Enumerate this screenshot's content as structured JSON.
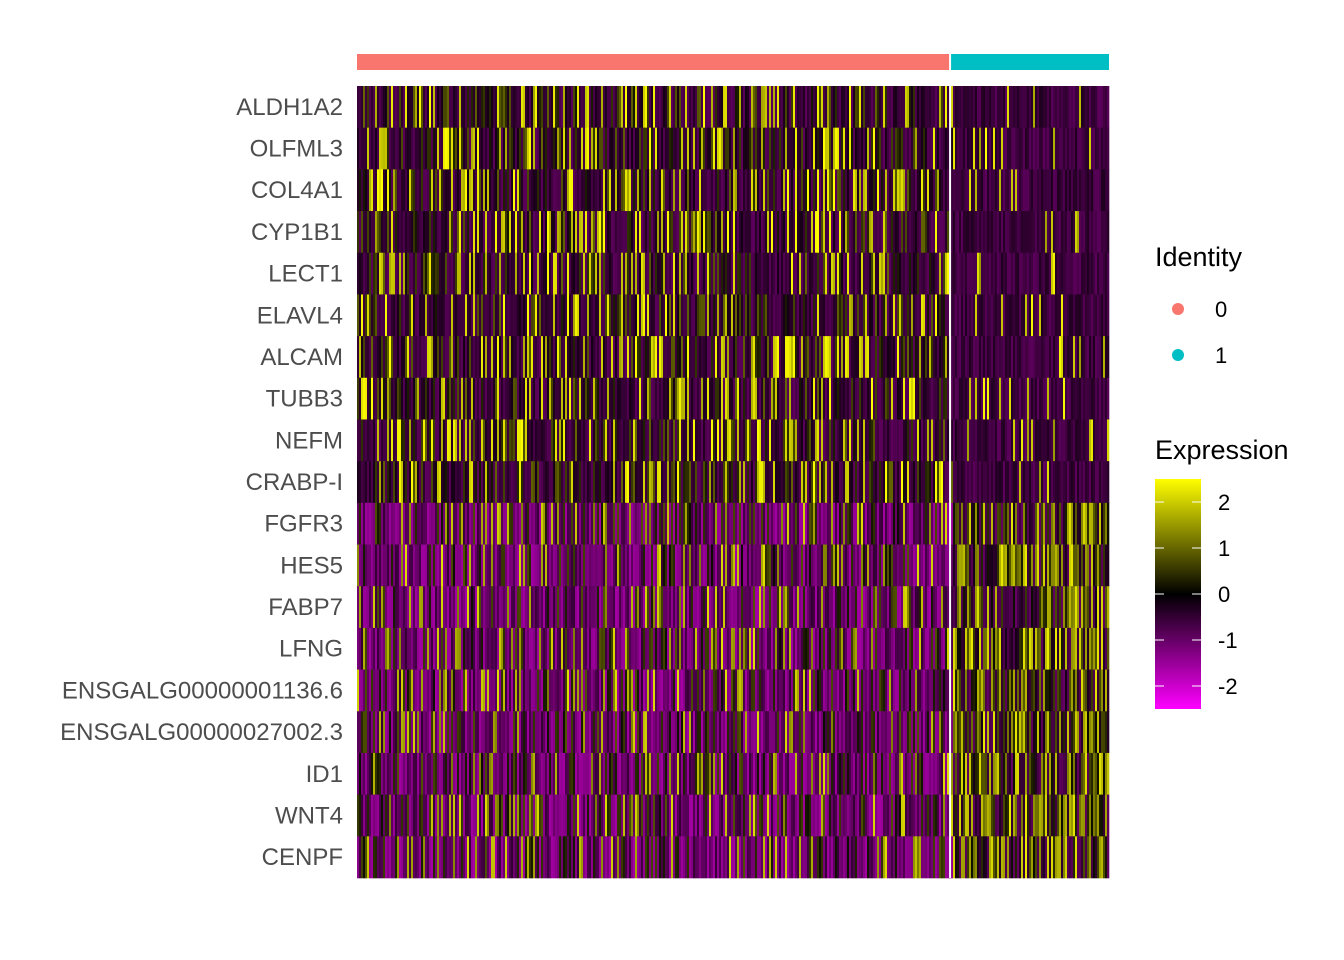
{
  "chart_data": {
    "type": "heatmap",
    "title": "",
    "xlabel": "",
    "ylabel": "",
    "genes": [
      "ALDH1A2",
      "OLFML3",
      "COL4A1",
      "CYP1B1",
      "LECT1",
      "ELAVL4",
      "ALCAM",
      "TUBB3",
      "NEFM",
      "CRABP-I",
      "FGFR3",
      "HES5",
      "FABP7",
      "LFNG",
      "ENSGALG00000001136.6",
      "ENSGALG00000027002.3",
      "ID1",
      "WNT4",
      "CENPF"
    ],
    "gene_bias": [
      1,
      1,
      1,
      1,
      1,
      1,
      1,
      1,
      1,
      1,
      0,
      0,
      0,
      0,
      0,
      0,
      0,
      0,
      0
    ],
    "groups": [
      {
        "identity": "0",
        "color": "#F8766D",
        "fraction": 0.79
      },
      {
        "identity": "1",
        "color": "#00BFC4",
        "fraction": 0.21
      }
    ],
    "identity_legend": {
      "title": "Identity",
      "items": [
        {
          "label": "0",
          "color": "#F8766D"
        },
        {
          "label": "1",
          "color": "#00BFC4"
        }
      ]
    },
    "expression_legend": {
      "title": "Expression",
      "range": [
        -2.5,
        2.5
      ],
      "ticks": [
        "2",
        "1",
        "0",
        "-1",
        "-2"
      ],
      "tick_values": [
        2,
        1,
        0,
        -1,
        -2
      ],
      "colors": [
        "#FF00FF",
        "#000000",
        "#FFFF00"
      ]
    },
    "grid": false,
    "legend_position": "right"
  }
}
